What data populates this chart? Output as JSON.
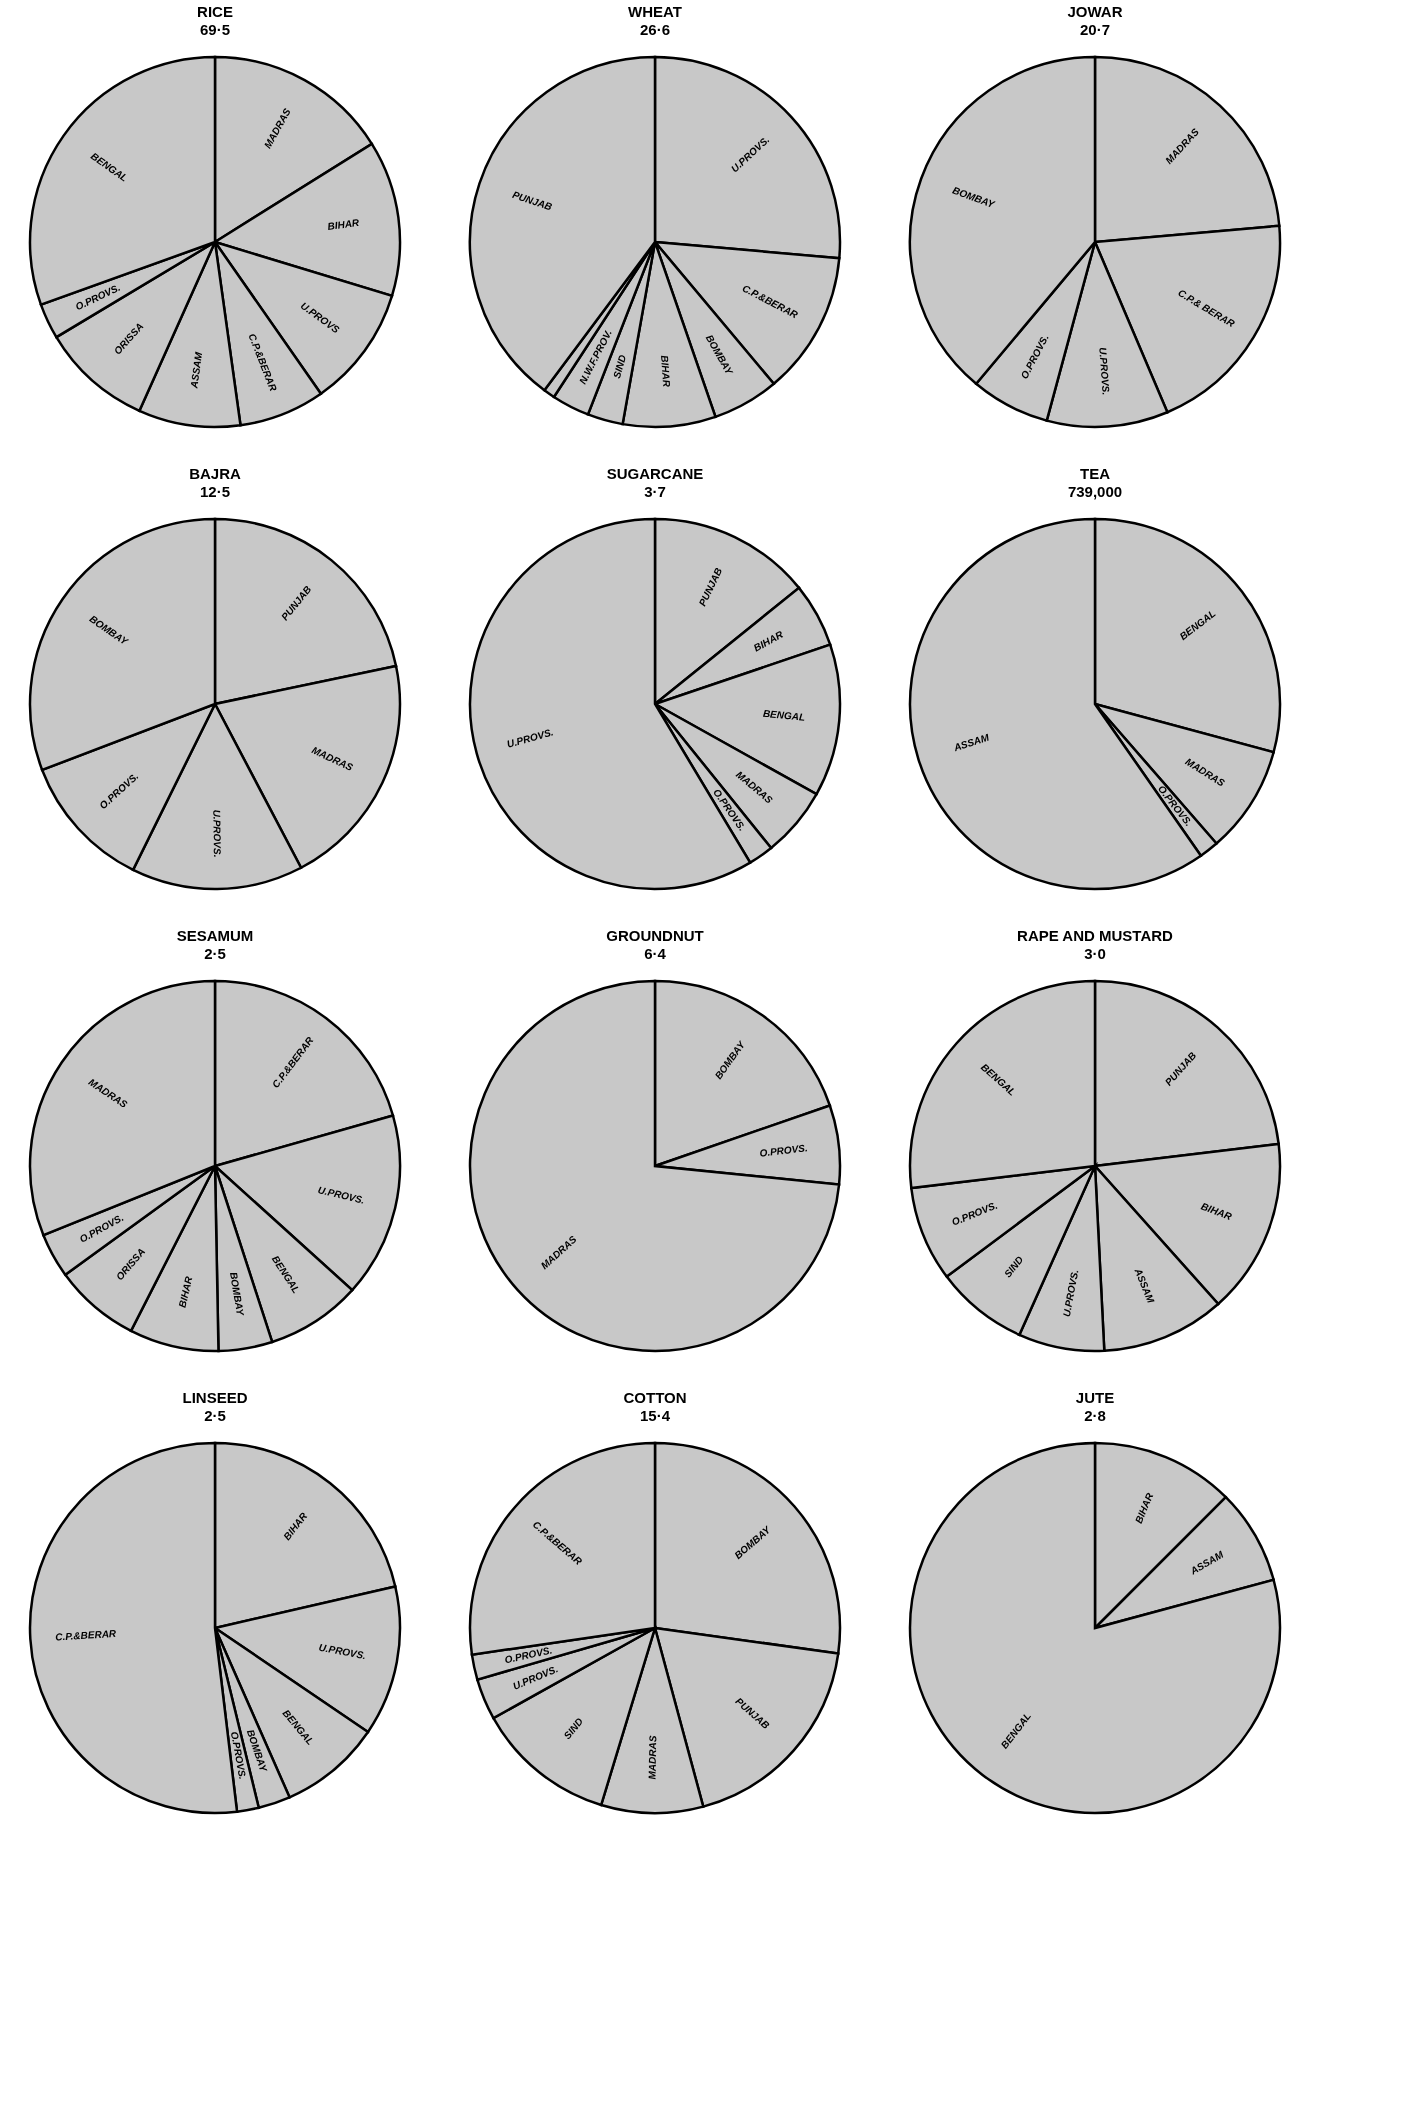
{
  "chart_data": [
    {
      "type": "pie",
      "title": "RICE",
      "subtitle": "69·5",
      "categories": [
        "MADRAS",
        "BIHAR",
        "U.PROVS",
        "C.P.&BERAR",
        "ASSAM",
        "ORISSA",
        "O.PROVS.",
        "BENGAL"
      ],
      "values": [
        16.1,
        13.6,
        10.6,
        7.5,
        8.9,
        9.7,
        3.1,
        30.5
      ],
      "colors": [
        "#c8c8c8",
        "#c8c8c8",
        "#c8c8c8",
        "#c8c8c8",
        "#c8c8c8",
        "#c8c8c8",
        "#c8c8c8",
        "#c8c8c8"
      ]
    },
    {
      "type": "pie",
      "title": "WHEAT",
      "subtitle": "26·6",
      "categories": [
        "U.PROVS.",
        "C.P.&BERAR",
        "BOMBAY",
        "BIHAR",
        "SIND",
        "N.W.F.PROV.",
        null,
        "PUNJAB"
      ],
      "values": [
        26.4,
        12.5,
        5.8,
        8.1,
        3.1,
        3.3,
        1.0,
        39.8
      ],
      "colors": [
        "#c8c8c8",
        "#c8c8c8",
        "#c8c8c8",
        "#c8c8c8",
        "#c8c8c8",
        "#c8c8c8",
        "#c8c8c8",
        "#c8c8c8"
      ]
    },
    {
      "type": "pie",
      "title": "JOWAR",
      "subtitle": "20·7",
      "categories": [
        "MADRAS",
        "C.P.& BERAR",
        "U.PROVS.",
        "O.PROVS.",
        "BOMBAY"
      ],
      "values": [
        23.6,
        20.0,
        10.6,
        6.9,
        38.9
      ],
      "colors": [
        "#c8c8c8",
        "#c8c8c8",
        "#c8c8c8",
        "#c8c8c8",
        "#c8c8c8"
      ]
    },
    {
      "type": "pie",
      "title": "BAJRA",
      "subtitle": "12·5",
      "categories": [
        "PUNJAB",
        "MADRAS",
        "U.PROVS.",
        "O.PROVS.",
        "BOMBAY"
      ],
      "values": [
        21.7,
        20.6,
        15.0,
        11.9,
        30.8
      ],
      "colors": [
        "#c8c8c8",
        "#c8c8c8",
        "#c8c8c8",
        "#c8c8c8",
        "#c8c8c8"
      ]
    },
    {
      "type": "pie",
      "title": "SUGARCANE",
      "subtitle": "3·7",
      "categories": [
        "PUNJAB",
        "BIHAR",
        "BENGAL",
        "MADRAS",
        "O.PROVS.",
        "U.PROVS."
      ],
      "values": [
        14.2,
        5.6,
        13.3,
        6.1,
        2.2,
        58.6
      ],
      "colors": [
        "#c8c8c8",
        "#c8c8c8",
        "#c8c8c8",
        "#c8c8c8",
        "#c8c8c8",
        "#c8c8c8"
      ]
    },
    {
      "type": "pie",
      "title": "TEA",
      "subtitle": "739,000",
      "categories": [
        "BENGAL",
        "MADRAS",
        "O.PROVS.",
        "ASSAM"
      ],
      "values": [
        29.2,
        9.4,
        1.7,
        59.7
      ],
      "colors": [
        "#c8c8c8",
        "#c8c8c8",
        "#c8c8c8",
        "#c8c8c8"
      ]
    },
    {
      "type": "pie",
      "title": "SESAMUM",
      "subtitle": "2·5",
      "categories": [
        "C.P.&BERAR",
        "U.PROVS.",
        "BENGAL",
        "BOMBAY",
        "BIHAR",
        "ORISSA",
        "O.PROVS.",
        "MADRAS"
      ],
      "values": [
        20.6,
        16.1,
        8.3,
        4.7,
        7.8,
        7.5,
        3.9,
        31.1
      ],
      "colors": [
        "#c8c8c8",
        "#c8c8c8",
        "#c8c8c8",
        "#c8c8c8",
        "#c8c8c8",
        "#c8c8c8",
        "#c8c8c8",
        "#c8c8c8"
      ]
    },
    {
      "type": "pie",
      "title": "GROUNDNUT",
      "subtitle": "6·4",
      "categories": [
        "BOMBAY",
        "O.PROVS.",
        "MADRAS"
      ],
      "values": [
        19.7,
        6.9,
        73.4
      ],
      "colors": [
        "#c8c8c8",
        "#c8c8c8",
        "#c8c8c8"
      ]
    },
    {
      "type": "pie",
      "title": "RAPE AND MUSTARD",
      "subtitle": "3·0",
      "categories": [
        "PUNJAB",
        "BIHAR",
        "ASSAM",
        "U.PROVS.",
        "SIND",
        "O.PROVS.",
        "BENGAL"
      ],
      "values": [
        23.1,
        15.3,
        10.8,
        7.5,
        8.1,
        8.3,
        26.9
      ],
      "colors": [
        "#c8c8c8",
        "#c8c8c8",
        "#c8c8c8",
        "#c8c8c8",
        "#c8c8c8",
        "#c8c8c8",
        "#c8c8c8"
      ]
    },
    {
      "type": "pie",
      "title": "LINSEED",
      "subtitle": "2·5",
      "categories": [
        "BIHAR",
        "U.PROVS.",
        "BENGAL",
        "BOMBAY",
        "O.PROVS.",
        "C.P.&BERAR"
      ],
      "values": [
        21.4,
        13.1,
        8.9,
        2.8,
        1.9,
        51.9
      ],
      "colors": [
        "#c8c8c8",
        "#c8c8c8",
        "#c8c8c8",
        "#c8c8c8",
        "#c8c8c8",
        "#c8c8c8"
      ]
    },
    {
      "type": "pie",
      "title": "COTTON",
      "subtitle": "15·4",
      "categories": [
        "BOMBAY",
        "PUNJAB",
        "MADRAS",
        "SIND",
        "U.PROVS.",
        "O.PROVS.",
        "C.P.&BERAR"
      ],
      "values": [
        27.2,
        18.6,
        8.9,
        12.2,
        3.6,
        2.2,
        27.3
      ],
      "colors": [
        "#c8c8c8",
        "#c8c8c8",
        "#c8c8c8",
        "#c8c8c8",
        "#c8c8c8",
        "#c8c8c8",
        "#c8c8c8"
      ]
    },
    {
      "type": "pie",
      "title": "JUTE",
      "subtitle": "2·8",
      "categories": [
        "BIHAR",
        "ASSAM",
        "BENGAL"
      ],
      "values": [
        12.5,
        8.3,
        79.2
      ],
      "colors": [
        "#c8c8c8",
        "#c8c8c8",
        "#c8c8c8"
      ]
    }
  ]
}
